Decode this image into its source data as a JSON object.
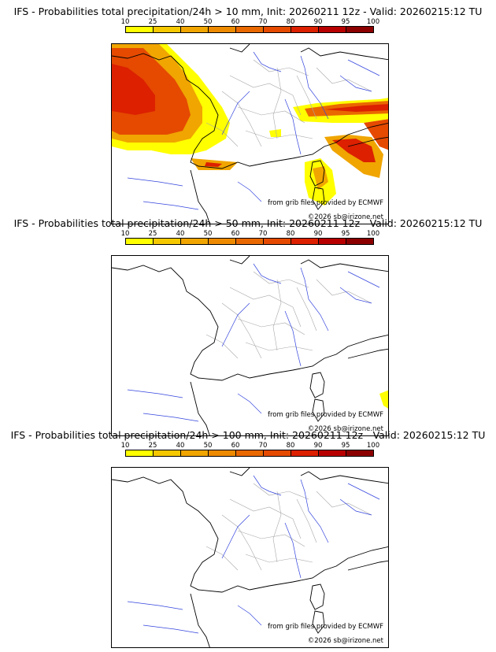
{
  "panels": [
    {
      "title": "IFS - Probabilities total precipitation/24h > 10 mm, Init: 20260211 12z - Valid: 20260215:12 TU",
      "credit_source": "from grib files provided by ECMWF",
      "credit_copyright": "©2026 sb@irizone.net"
    },
    {
      "title": "IFS - Probabilities total precipitation/24h > 50 mm, Init: 20260211 12z - Valid: 20260215:12 TU",
      "credit_source": "from grib files provided by ECMWF",
      "credit_copyright": "©2026 sb@irizone.net"
    },
    {
      "title": "IFS - Probabilities total precipitation/24h > 100 mm, Init: 20260211 12z - Valid: 20260215:12 TU",
      "credit_source": "from grib files provided by ECMWF",
      "credit_copyright": "©2026 sb@irizone.net"
    }
  ],
  "colorscale": {
    "labels": [
      "10",
      "25",
      "40",
      "50",
      "60",
      "70",
      "80",
      "90",
      "95",
      "100"
    ],
    "colors": [
      "#ffff00",
      "#f5c800",
      "#f0a500",
      "#ee8a00",
      "#ea6800",
      "#e54a00",
      "#dc2000",
      "#b80000",
      "#8c0000",
      "#5a0000"
    ]
  },
  "colors": {
    "coast": "#000000",
    "rivers": "#3344dd",
    "admin_borders": "#a8a8a8"
  }
}
